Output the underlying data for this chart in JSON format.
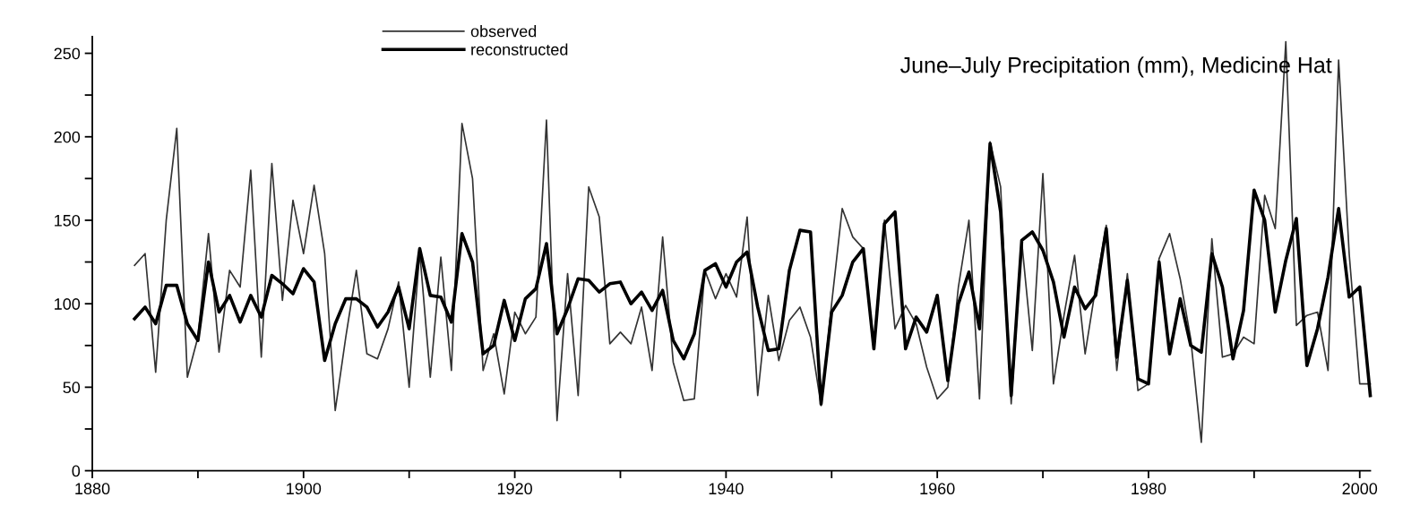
{
  "chart_data": {
    "type": "line",
    "title": "June–July Precipitation (mm), Medicine Hat",
    "x": [
      1884,
      1885,
      1886,
      1887,
      1888,
      1889,
      1890,
      1891,
      1892,
      1893,
      1894,
      1895,
      1896,
      1897,
      1898,
      1899,
      1900,
      1901,
      1902,
      1903,
      1904,
      1905,
      1906,
      1907,
      1908,
      1909,
      1910,
      1911,
      1912,
      1913,
      1914,
      1915,
      1916,
      1917,
      1918,
      1919,
      1920,
      1921,
      1922,
      1923,
      1924,
      1925,
      1926,
      1927,
      1928,
      1929,
      1930,
      1931,
      1932,
      1933,
      1934,
      1935,
      1936,
      1937,
      1938,
      1939,
      1940,
      1941,
      1942,
      1943,
      1944,
      1945,
      1946,
      1947,
      1948,
      1949,
      1950,
      1951,
      1952,
      1953,
      1954,
      1955,
      1956,
      1957,
      1958,
      1959,
      1960,
      1961,
      1962,
      1963,
      1964,
      1965,
      1966,
      1967,
      1968,
      1969,
      1970,
      1971,
      1972,
      1973,
      1974,
      1975,
      1976,
      1977,
      1978,
      1979,
      1980,
      1981,
      1982,
      1983,
      1984,
      1985,
      1986,
      1987,
      1988,
      1989,
      1990,
      1991,
      1992,
      1993,
      1994,
      1995,
      1996,
      1997,
      1998,
      1999,
      2000,
      2001
    ],
    "series": [
      {
        "name": "observed",
        "color": "#333333",
        "values": [
          123,
          130,
          59,
          150,
          205,
          56,
          80,
          142,
          71,
          120,
          110,
          180,
          68,
          184,
          102,
          162,
          130,
          171,
          130,
          36,
          80,
          120,
          70,
          67,
          85,
          113,
          50,
          131,
          56,
          128,
          60,
          208,
          175,
          60,
          82,
          46,
          95,
          82,
          92,
          210,
          30,
          118,
          45,
          170,
          152,
          76,
          83,
          76,
          98,
          60,
          140,
          65,
          42,
          43,
          120,
          103,
          118,
          104,
          152,
          45,
          105,
          66,
          90,
          98,
          80,
          39,
          100,
          157,
          140,
          133,
          75,
          150,
          85,
          99,
          88,
          62,
          43,
          50,
          110,
          150,
          43,
          197,
          170,
          40,
          137,
          72,
          178,
          52,
          93,
          129,
          70,
          110,
          147,
          60,
          118,
          48,
          52,
          127,
          142,
          115,
          79,
          17,
          139,
          68,
          70,
          80,
          76,
          165,
          145,
          257,
          87,
          93,
          95,
          60,
          246,
          130,
          52,
          52
        ]
      },
      {
        "name": "reconstructed",
        "color": "#000000",
        "values": [
          91,
          98,
          88,
          111,
          111,
          88,
          78,
          125,
          95,
          105,
          89,
          105,
          92,
          117,
          112,
          106,
          121,
          113,
          66,
          88,
          103,
          103,
          98,
          86,
          95,
          110,
          85,
          133,
          105,
          104,
          89,
          142,
          125,
          70,
          75,
          102,
          78,
          103,
          109,
          136,
          82,
          97,
          115,
          114,
          107,
          112,
          113,
          100,
          107,
          96,
          108,
          78,
          67,
          82,
          120,
          124,
          110,
          125,
          131,
          98,
          72,
          73,
          120,
          144,
          143,
          40,
          95,
          105,
          125,
          133,
          73,
          148,
          155,
          73,
          92,
          83,
          105,
          54,
          100,
          119,
          85,
          196,
          155,
          45,
          138,
          143,
          132,
          113,
          80,
          110,
          97,
          105,
          145,
          68,
          114,
          55,
          52,
          125,
          70,
          103,
          75,
          71,
          130,
          110,
          67,
          96,
          168,
          150,
          95,
          126,
          151,
          63,
          85,
          116,
          157,
          104,
          110,
          45
        ]
      }
    ],
    "xlim": [
      1880,
      2001
    ],
    "xticks": [
      1880,
      {
        "value": 1890,
        "label": null
      },
      1900,
      {
        "value": 1910,
        "label": null
      },
      1920,
      {
        "value": 1930,
        "label": null
      },
      1940,
      {
        "value": 1950,
        "label": null
      },
      1960,
      {
        "value": 1970,
        "label": null
      },
      1980,
      {
        "value": 1990,
        "label": null
      },
      2000
    ],
    "ylim": [
      0,
      260
    ],
    "yticks": [
      0,
      {
        "value": 25,
        "label": null
      },
      50,
      {
        "value": 75,
        "label": null
      },
      100,
      {
        "value": 125,
        "label": null
      },
      150,
      {
        "value": 175,
        "label": null
      },
      200,
      {
        "value": 225,
        "label": null
      },
      250
    ],
    "grid": false,
    "legend": "top",
    "marker": "none",
    "line_style": "solid"
  }
}
